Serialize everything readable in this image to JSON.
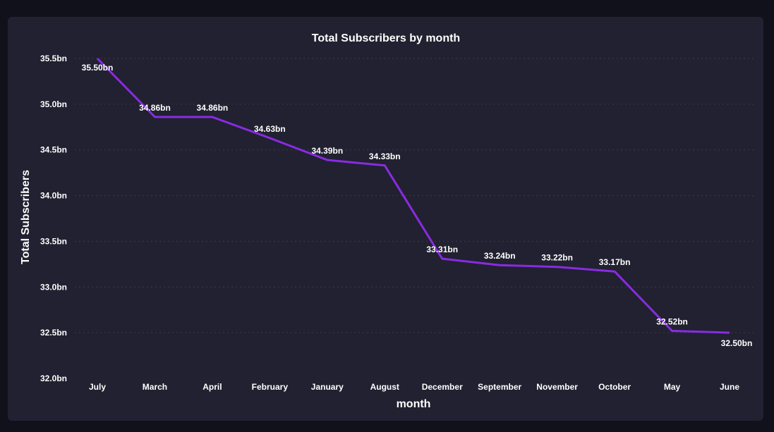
{
  "chart_data": {
    "type": "line",
    "title": "Total Subscribers by month",
    "xlabel": "month",
    "ylabel": "Total Subscribers",
    "categories": [
      "July",
      "March",
      "April",
      "February",
      "January",
      "August",
      "December",
      "September",
      "November",
      "October",
      "May",
      "June"
    ],
    "values": [
      35.5,
      34.86,
      34.86,
      34.63,
      34.39,
      34.33,
      33.31,
      33.24,
      33.22,
      33.17,
      32.52,
      32.5
    ],
    "data_labels": [
      "35.50bn",
      "34.86bn",
      "34.86bn",
      "34.63bn",
      "34.39bn",
      "34.33bn",
      "33.31bn",
      "33.24bn",
      "33.22bn",
      "33.17bn",
      "32.52bn",
      "32.50bn"
    ],
    "ylim": [
      32.0,
      35.5
    ],
    "yticks": [
      32.0,
      32.5,
      33.0,
      33.5,
      34.0,
      34.5,
      35.0,
      35.5
    ],
    "ytick_labels": [
      "32.0bn",
      "32.5bn",
      "33.0bn",
      "33.5bn",
      "34.0bn",
      "34.5bn",
      "35.0bn",
      "35.5bn"
    ],
    "grid": true,
    "colors": {
      "page_background": "#11111b",
      "card_background": "#212131",
      "line": "#8a2be2",
      "text": "#ffffff",
      "grid": "#3b3b50"
    }
  }
}
